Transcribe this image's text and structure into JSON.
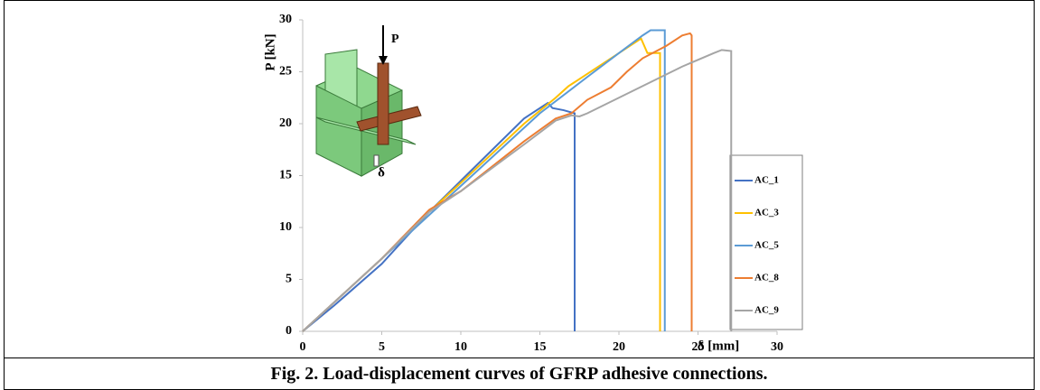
{
  "chart_data": {
    "type": "line",
    "xlabel": "δ [mm]",
    "ylabel": "P [kN]",
    "caption": "Fig. 2. Load-displacement curves of GFRP adhesive connections.",
    "inset_labels": [
      "P",
      "δ"
    ],
    "xlim": [
      0,
      30
    ],
    "ylim": [
      0,
      30
    ],
    "xticks": [
      0,
      5,
      10,
      15,
      20,
      25,
      30
    ],
    "yticks": [
      0,
      5,
      10,
      15,
      20,
      25,
      30
    ],
    "grid": false,
    "legend": "right",
    "series": [
      {
        "name": "AC_1",
        "color": "#4472c4",
        "x": [
          0,
          2,
          5,
          8,
          10,
          12,
          14,
          15.5,
          15.8,
          16.5,
          17.2,
          17.2
        ],
        "values": [
          0,
          2.5,
          6.5,
          11.5,
          14.5,
          17.5,
          20.5,
          22,
          21.5,
          21.3,
          21,
          0
        ]
      },
      {
        "name": "AC_3",
        "color": "#ffc000",
        "x": [
          0,
          5,
          8,
          10,
          14,
          16,
          16.8,
          18,
          20,
          21.4,
          21.8,
          22.6,
          22.6
        ],
        "values": [
          0,
          7,
          11.5,
          14.3,
          20,
          22.5,
          23.6,
          24.8,
          26.8,
          28.2,
          26.8,
          26.8,
          0
        ]
      },
      {
        "name": "AC_5",
        "color": "#5b9bd5",
        "x": [
          0,
          5,
          10,
          15,
          18,
          20,
          21.5,
          22,
          22.9,
          22.9
        ],
        "values": [
          0,
          7,
          14,
          21,
          24.5,
          26.8,
          28.5,
          29,
          29,
          0
        ]
      },
      {
        "name": "AC_8",
        "color": "#ed7d31",
        "x": [
          0,
          5,
          8,
          10,
          14,
          16,
          17,
          18,
          19.5,
          20.5,
          21.5,
          23,
          24,
          24.5,
          24.6,
          24.6
        ],
        "values": [
          0,
          7,
          11.7,
          13.5,
          18.3,
          20.5,
          21,
          22.3,
          23.5,
          25,
          26.3,
          27.5,
          28.5,
          28.7,
          28.5,
          0
        ]
      },
      {
        "name": "AC_9",
        "color": "#a5a5a5",
        "x": [
          0,
          5,
          8,
          10,
          14,
          16,
          17,
          17.5,
          18,
          20,
          22,
          24,
          26,
          26.5,
          27.1,
          27.1
        ],
        "values": [
          0,
          7,
          11.5,
          13.5,
          18,
          20.3,
          20.8,
          20.7,
          21,
          22.5,
          24,
          25.5,
          26.8,
          27.1,
          27,
          0
        ]
      }
    ]
  }
}
